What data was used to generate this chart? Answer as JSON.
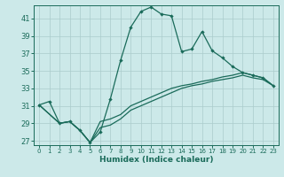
{
  "xlabel": "Humidex (Indice chaleur)",
  "background_color": "#cce9e9",
  "grid_color": "#aacccc",
  "line_color": "#1a6b5a",
  "xlim": [
    -0.5,
    23.5
  ],
  "ylim": [
    26.5,
    42.5
  ],
  "xticks": [
    0,
    1,
    2,
    3,
    4,
    5,
    6,
    7,
    8,
    9,
    10,
    11,
    12,
    13,
    14,
    15,
    16,
    17,
    18,
    19,
    20,
    21,
    22,
    23
  ],
  "yticks": [
    27,
    29,
    31,
    33,
    35,
    37,
    39,
    41
  ],
  "curve1_x": [
    0,
    1,
    2,
    3,
    4,
    5,
    6,
    7,
    8,
    9,
    10,
    11,
    12,
    13,
    14,
    15,
    16,
    17,
    18,
    19,
    20,
    21,
    22,
    23
  ],
  "curve1_y": [
    31.1,
    31.5,
    29.0,
    29.2,
    28.2,
    26.8,
    28.0,
    31.8,
    36.2,
    40.0,
    41.8,
    42.3,
    41.5,
    41.3,
    37.2,
    37.5,
    39.5,
    37.3,
    36.5,
    35.5,
    34.8,
    34.5,
    34.2,
    33.3
  ],
  "curve2_x": [
    0,
    2,
    3,
    4,
    5,
    6,
    7,
    8,
    9,
    10,
    11,
    12,
    13,
    14,
    15,
    16,
    17,
    18,
    19,
    20,
    21,
    22,
    23
  ],
  "curve2_y": [
    31.1,
    29.0,
    29.2,
    28.2,
    26.8,
    29.2,
    29.5,
    30.0,
    31.0,
    31.5,
    32.0,
    32.5,
    33.0,
    33.3,
    33.5,
    33.8,
    34.0,
    34.3,
    34.5,
    34.8,
    34.5,
    34.2,
    33.3
  ],
  "curve3_x": [
    0,
    2,
    3,
    4,
    5,
    6,
    7,
    8,
    9,
    10,
    11,
    12,
    13,
    14,
    15,
    16,
    17,
    18,
    19,
    20,
    21,
    22,
    23
  ],
  "curve3_y": [
    31.1,
    29.0,
    29.2,
    28.2,
    26.8,
    28.5,
    28.8,
    29.5,
    30.5,
    31.0,
    31.5,
    32.0,
    32.5,
    33.0,
    33.3,
    33.5,
    33.8,
    34.0,
    34.2,
    34.5,
    34.2,
    34.0,
    33.3
  ]
}
